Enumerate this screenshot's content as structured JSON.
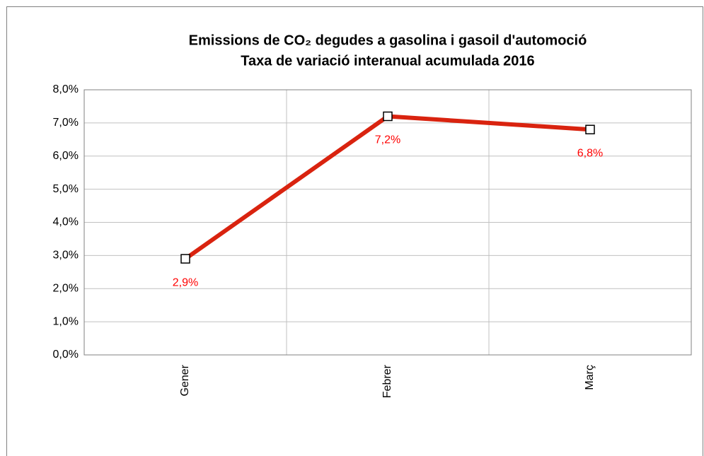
{
  "chart_data": {
    "type": "line",
    "title": "Emissions de CO₂ degudes a gasolina i gasoil d'automoció",
    "subtitle": "Taxa de variació interanual acumulada 2016",
    "categories": [
      "Gener",
      "Febrer",
      "Març"
    ],
    "series": [
      {
        "name": "Taxa de variació interanual acumulada",
        "color": "#d9230f",
        "values": [
          2.9,
          7.2,
          6.8
        ],
        "value_labels": [
          "2,9%",
          "7,2%",
          "6,8%"
        ]
      }
    ],
    "ylim": [
      0,
      8
    ],
    "yticks": [
      {
        "value": 0,
        "label": "0,0%"
      },
      {
        "value": 1,
        "label": "1,0%"
      },
      {
        "value": 2,
        "label": "2,0%"
      },
      {
        "value": 3,
        "label": "3,0%"
      },
      {
        "value": 4,
        "label": "4,0%"
      },
      {
        "value": 5,
        "label": "5,0%"
      },
      {
        "value": 6,
        "label": "6,0%"
      },
      {
        "value": 7,
        "label": "7,0%"
      },
      {
        "value": 8,
        "label": "8,0%"
      }
    ],
    "grid": true,
    "label_color": "#ff0000"
  }
}
